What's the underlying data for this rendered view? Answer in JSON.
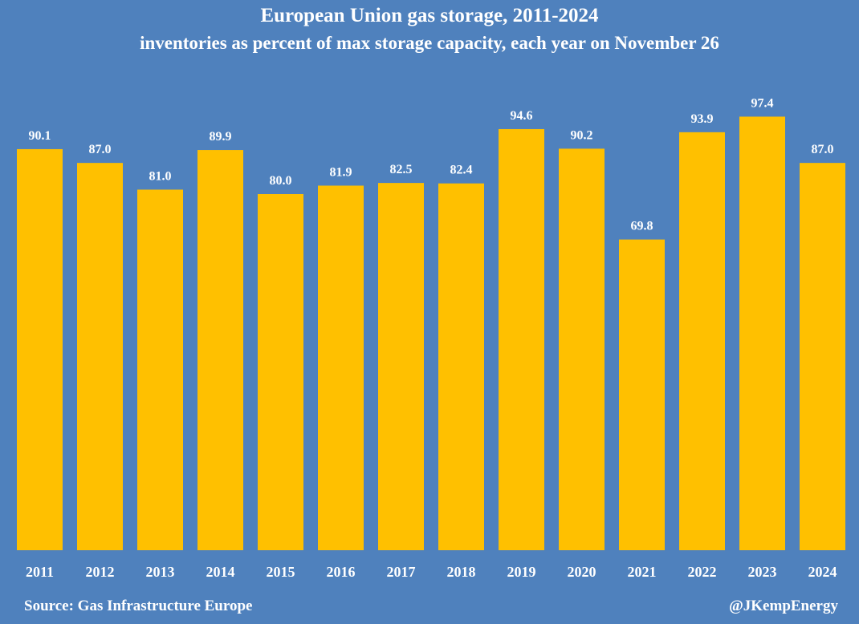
{
  "chart_data": {
    "type": "bar",
    "title": "European Union gas storage, 2011-2024",
    "subtitle": "inventories as percent of max storage capacity, each year on November 26",
    "categories": [
      "2011",
      "2012",
      "2013",
      "2014",
      "2015",
      "2016",
      "2017",
      "2018",
      "2019",
      "2020",
      "2021",
      "2022",
      "2023",
      "2024"
    ],
    "values": [
      90.1,
      87.0,
      81.0,
      89.9,
      80.0,
      81.9,
      82.5,
      82.4,
      94.6,
      90.2,
      69.8,
      93.9,
      97.4,
      87.0
    ],
    "value_labels": [
      "90.1",
      "87.0",
      "81.0",
      "89.9",
      "80.0",
      "81.9",
      "82.5",
      "82.4",
      "94.6",
      "90.2",
      "69.8",
      "93.9",
      "97.4",
      "87.0"
    ],
    "ylim": [
      0,
      100
    ],
    "xlabel": "",
    "ylabel": "",
    "grid": false,
    "bar_color": "#ffc000",
    "background_color": "#4f81bd"
  },
  "footer": {
    "source": "Source: Gas Infrastructure Europe",
    "credit": "@JKempEnergy"
  }
}
